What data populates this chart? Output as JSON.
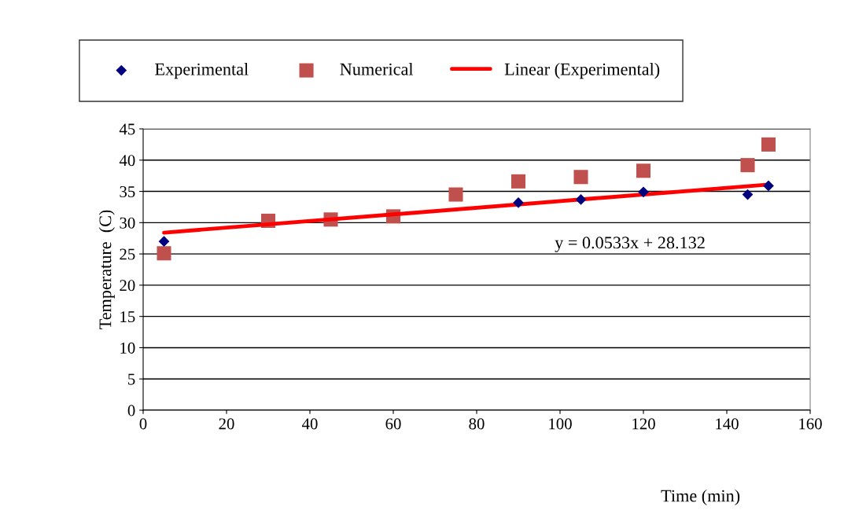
{
  "chart_data": {
    "type": "scatter",
    "xlabel": "Time (min)",
    "ylabel": "Temperature  (C)",
    "xlim": [
      0,
      160
    ],
    "xticks": [
      0,
      20,
      40,
      60,
      80,
      100,
      120,
      140,
      160
    ],
    "ylim": [
      0,
      45
    ],
    "yticks": [
      0,
      5,
      10,
      15,
      20,
      25,
      30,
      35,
      40,
      45
    ],
    "grid": "y",
    "legend": "top",
    "annotations": [
      "y = 0.0533x + 28.132"
    ],
    "series": [
      {
        "name": "Experimental",
        "marker": "diamond",
        "color": "#000080",
        "x": [
          5,
          30,
          45,
          60,
          75,
          90,
          105,
          120,
          145,
          150
        ],
        "values": [
          27.0,
          null,
          null,
          null,
          null,
          33.2,
          33.7,
          34.9,
          34.5,
          35.9
        ]
      },
      {
        "name": "Numerical",
        "marker": "square",
        "color": "#c0504d",
        "x": [
          5,
          30,
          45,
          60,
          75,
          90,
          105,
          120,
          145,
          150
        ],
        "values": [
          25.1,
          30.3,
          30.5,
          31.0,
          34.5,
          36.6,
          37.3,
          38.3,
          39.2,
          42.5
        ]
      },
      {
        "name": "Linear (Experimental)",
        "type": "line",
        "marker": "none",
        "color": "#ff0000",
        "x": [
          5,
          150
        ],
        "values": [
          28.4,
          36.1
        ]
      }
    ]
  }
}
